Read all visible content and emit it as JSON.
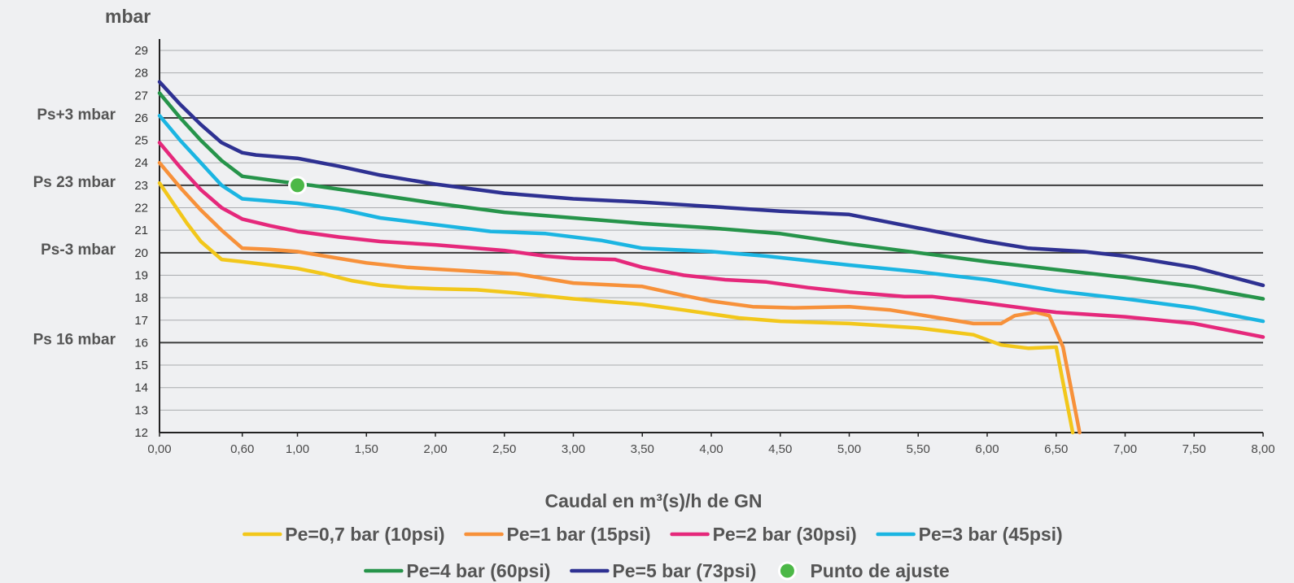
{
  "chart_data": {
    "type": "line",
    "ylabel": "mbar",
    "xlabel": "Caudal en m³(s)/h de GN",
    "xlim": [
      0,
      8
    ],
    "ylim": [
      12,
      29
    ],
    "x_ticks": [
      0,
      0.6,
      1,
      1.5,
      2,
      2.5,
      3,
      3.5,
      4,
      4.5,
      5,
      5.5,
      6,
      6.5,
      7,
      7.5,
      8
    ],
    "x_tick_labels": [
      "0,00",
      "0,60",
      "1,00",
      "1,50",
      "2,00",
      "2,50",
      "3,00",
      "3,50",
      "4,00",
      "4,50",
      "5,00",
      "5,50",
      "6,00",
      "6,50",
      "7,00",
      "7,50",
      "8,00"
    ],
    "y_ticks": [
      12,
      13,
      14,
      15,
      16,
      17,
      18,
      19,
      20,
      21,
      22,
      23,
      24,
      25,
      26,
      27,
      28,
      29
    ],
    "grid": true,
    "reference_lines": [
      {
        "y": 26,
        "label": "Ps+3 mbar"
      },
      {
        "y": 23,
        "label": "Ps 23 mbar"
      },
      {
        "y": 20,
        "label": "Ps-3 mbar"
      },
      {
        "y": 16,
        "label": "Ps 16 mbar"
      }
    ],
    "series": [
      {
        "name": "Pe=0,7 bar (10psi)",
        "color": "#f2c71b",
        "points": [
          [
            0,
            23.1
          ],
          [
            0.1,
            22.2
          ],
          [
            0.2,
            21.3
          ],
          [
            0.3,
            20.5
          ],
          [
            0.45,
            19.7
          ],
          [
            0.6,
            19.6
          ],
          [
            0.8,
            19.45
          ],
          [
            1.0,
            19.3
          ],
          [
            1.2,
            19.05
          ],
          [
            1.4,
            18.75
          ],
          [
            1.6,
            18.55
          ],
          [
            1.8,
            18.45
          ],
          [
            2.0,
            18.4
          ],
          [
            2.3,
            18.35
          ],
          [
            2.6,
            18.2
          ],
          [
            3.0,
            17.95
          ],
          [
            3.3,
            17.8
          ],
          [
            3.5,
            17.7
          ],
          [
            3.8,
            17.45
          ],
          [
            4.2,
            17.1
          ],
          [
            4.5,
            16.95
          ],
          [
            5.0,
            16.85
          ],
          [
            5.5,
            16.65
          ],
          [
            5.9,
            16.35
          ],
          [
            6.1,
            15.9
          ],
          [
            6.3,
            15.75
          ],
          [
            6.5,
            15.8
          ],
          [
            6.62,
            12
          ]
        ]
      },
      {
        "name": "Pe=1 bar (15psi)",
        "color": "#f7913a",
        "points": [
          [
            0,
            24.0
          ],
          [
            0.15,
            22.9
          ],
          [
            0.3,
            21.9
          ],
          [
            0.45,
            21.0
          ],
          [
            0.6,
            20.2
          ],
          [
            0.8,
            20.15
          ],
          [
            1.0,
            20.05
          ],
          [
            1.2,
            19.85
          ],
          [
            1.5,
            19.55
          ],
          [
            1.8,
            19.35
          ],
          [
            2.2,
            19.2
          ],
          [
            2.6,
            19.05
          ],
          [
            2.8,
            18.85
          ],
          [
            3.0,
            18.65
          ],
          [
            3.5,
            18.5
          ],
          [
            3.8,
            18.1
          ],
          [
            4.0,
            17.85
          ],
          [
            4.3,
            17.6
          ],
          [
            4.6,
            17.55
          ],
          [
            5.0,
            17.6
          ],
          [
            5.3,
            17.45
          ],
          [
            5.6,
            17.15
          ],
          [
            5.9,
            16.85
          ],
          [
            6.1,
            16.85
          ],
          [
            6.2,
            17.2
          ],
          [
            6.35,
            17.35
          ],
          [
            6.45,
            17.2
          ],
          [
            6.5,
            16.5
          ],
          [
            6.55,
            15.8
          ],
          [
            6.67,
            12
          ]
        ]
      },
      {
        "name": "Pe=2 bar (30psi)",
        "color": "#e5287b",
        "points": [
          [
            0,
            24.9
          ],
          [
            0.15,
            23.8
          ],
          [
            0.3,
            22.8
          ],
          [
            0.45,
            22.0
          ],
          [
            0.6,
            21.5
          ],
          [
            0.8,
            21.2
          ],
          [
            1.0,
            20.95
          ],
          [
            1.3,
            20.7
          ],
          [
            1.6,
            20.5
          ],
          [
            2.0,
            20.35
          ],
          [
            2.5,
            20.1
          ],
          [
            2.8,
            19.85
          ],
          [
            3.0,
            19.75
          ],
          [
            3.3,
            19.7
          ],
          [
            3.5,
            19.35
          ],
          [
            3.8,
            19.0
          ],
          [
            4.1,
            18.8
          ],
          [
            4.4,
            18.7
          ],
          [
            4.7,
            18.45
          ],
          [
            5.0,
            18.25
          ],
          [
            5.4,
            18.05
          ],
          [
            5.6,
            18.05
          ],
          [
            6.0,
            17.75
          ],
          [
            6.5,
            17.35
          ],
          [
            7.0,
            17.15
          ],
          [
            7.5,
            16.85
          ],
          [
            8.0,
            16.25
          ]
        ]
      },
      {
        "name": "Pe=3 bar (45psi)",
        "color": "#1bb5e2",
        "points": [
          [
            0,
            26.1
          ],
          [
            0.15,
            25.0
          ],
          [
            0.3,
            24.0
          ],
          [
            0.45,
            23.0
          ],
          [
            0.6,
            22.4
          ],
          [
            0.8,
            22.3
          ],
          [
            1.0,
            22.2
          ],
          [
            1.3,
            21.95
          ],
          [
            1.6,
            21.55
          ],
          [
            2.0,
            21.25
          ],
          [
            2.4,
            20.95
          ],
          [
            2.8,
            20.85
          ],
          [
            3.2,
            20.55
          ],
          [
            3.5,
            20.2
          ],
          [
            4.0,
            20.05
          ],
          [
            4.4,
            19.85
          ],
          [
            5.0,
            19.45
          ],
          [
            5.5,
            19.15
          ],
          [
            6.0,
            18.8
          ],
          [
            6.5,
            18.3
          ],
          [
            7.0,
            17.95
          ],
          [
            7.5,
            17.55
          ],
          [
            8.0,
            16.95
          ]
        ]
      },
      {
        "name": "Pe=4 bar (60psi)",
        "color": "#26944a",
        "points": [
          [
            0,
            27.1
          ],
          [
            0.15,
            26.0
          ],
          [
            0.3,
            25.0
          ],
          [
            0.45,
            24.1
          ],
          [
            0.6,
            23.4
          ],
          [
            0.9,
            23.15
          ],
          [
            1.1,
            23.0
          ],
          [
            1.5,
            22.65
          ],
          [
            2.0,
            22.2
          ],
          [
            2.5,
            21.8
          ],
          [
            3.0,
            21.55
          ],
          [
            3.5,
            21.3
          ],
          [
            4.0,
            21.1
          ],
          [
            4.5,
            20.85
          ],
          [
            5.0,
            20.4
          ],
          [
            5.5,
            20.0
          ],
          [
            6.0,
            19.6
          ],
          [
            6.5,
            19.25
          ],
          [
            7.0,
            18.9
          ],
          [
            7.5,
            18.5
          ],
          [
            8.0,
            17.95
          ]
        ]
      },
      {
        "name": "Pe=5 bar (73psi)",
        "color": "#2e3192",
        "points": [
          [
            0,
            27.6
          ],
          [
            0.15,
            26.6
          ],
          [
            0.3,
            25.7
          ],
          [
            0.45,
            24.9
          ],
          [
            0.6,
            24.45
          ],
          [
            0.7,
            24.35
          ],
          [
            1.0,
            24.2
          ],
          [
            1.3,
            23.85
          ],
          [
            1.6,
            23.45
          ],
          [
            2.0,
            23.05
          ],
          [
            2.5,
            22.65
          ],
          [
            3.0,
            22.4
          ],
          [
            3.5,
            22.25
          ],
          [
            4.0,
            22.05
          ],
          [
            4.5,
            21.85
          ],
          [
            5.0,
            21.7
          ],
          [
            5.5,
            21.1
          ],
          [
            6.0,
            20.5
          ],
          [
            6.3,
            20.2
          ],
          [
            6.7,
            20.05
          ],
          [
            7.0,
            19.85
          ],
          [
            7.5,
            19.35
          ],
          [
            8.0,
            18.55
          ]
        ]
      }
    ],
    "markers": [
      {
        "name": "Punto de ajuste",
        "x": 1.0,
        "y": 23.0,
        "color": "#4cb847"
      }
    ],
    "legend_position": "bottom"
  }
}
